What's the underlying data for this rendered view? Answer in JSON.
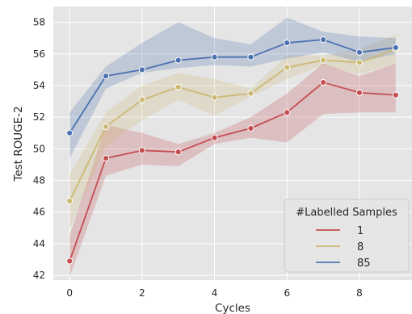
{
  "chart_data": {
    "type": "line",
    "title": "",
    "xlabel": "Cycles",
    "ylabel": "Test ROUGE-2",
    "xlim": [
      -0.45,
      9.45
    ],
    "ylim": [
      41.7,
      59.0
    ],
    "x_ticks": [
      0,
      2,
      4,
      6,
      8
    ],
    "y_ticks": [
      42,
      44,
      46,
      48,
      50,
      52,
      54,
      56,
      58
    ],
    "grid": true,
    "background": "#e5e5e5",
    "legend": {
      "title": "#Labelled Samples",
      "placement": "lower-right"
    },
    "x": [
      0,
      1,
      2,
      3,
      4,
      5,
      6,
      7,
      8,
      9
    ],
    "series": [
      {
        "name": "1",
        "color": "#c44e52",
        "values": [
          42.9,
          49.4,
          49.9,
          49.8,
          50.7,
          51.3,
          52.3,
          54.2,
          53.55,
          53.4
        ],
        "ci_low": [
          41.9,
          48.3,
          49.0,
          48.9,
          50.3,
          50.7,
          50.4,
          52.2,
          52.3,
          52.3
        ],
        "ci_high": [
          44.5,
          51.5,
          51.0,
          50.3,
          51.0,
          52.0,
          53.5,
          55.4,
          54.6,
          55.4
        ]
      },
      {
        "name": "8",
        "color": "#ccb974",
        "values": [
          46.7,
          51.4,
          53.1,
          53.9,
          53.25,
          53.5,
          55.15,
          55.6,
          55.45,
          56.3
        ],
        "ci_low": [
          44.9,
          50.2,
          51.8,
          53.1,
          52.1,
          53.3,
          54.4,
          55.3,
          54.7,
          55.4
        ],
        "ci_high": [
          48.4,
          52.3,
          54.0,
          54.8,
          54.4,
          53.8,
          55.9,
          55.9,
          56.3,
          57.2
        ]
      },
      {
        "name": "85",
        "color": "#4c72b0",
        "values": [
          51.0,
          54.6,
          55.0,
          55.6,
          55.8,
          55.8,
          56.7,
          56.9,
          56.1,
          56.4
        ],
        "ci_low": [
          49.4,
          53.8,
          54.8,
          55.1,
          55.3,
          55.2,
          55.7,
          56.1,
          55.5,
          56.0
        ],
        "ci_high": [
          52.3,
          55.2,
          56.7,
          58.0,
          57.0,
          56.6,
          58.3,
          57.4,
          57.1,
          57.0
        ]
      }
    ]
  }
}
